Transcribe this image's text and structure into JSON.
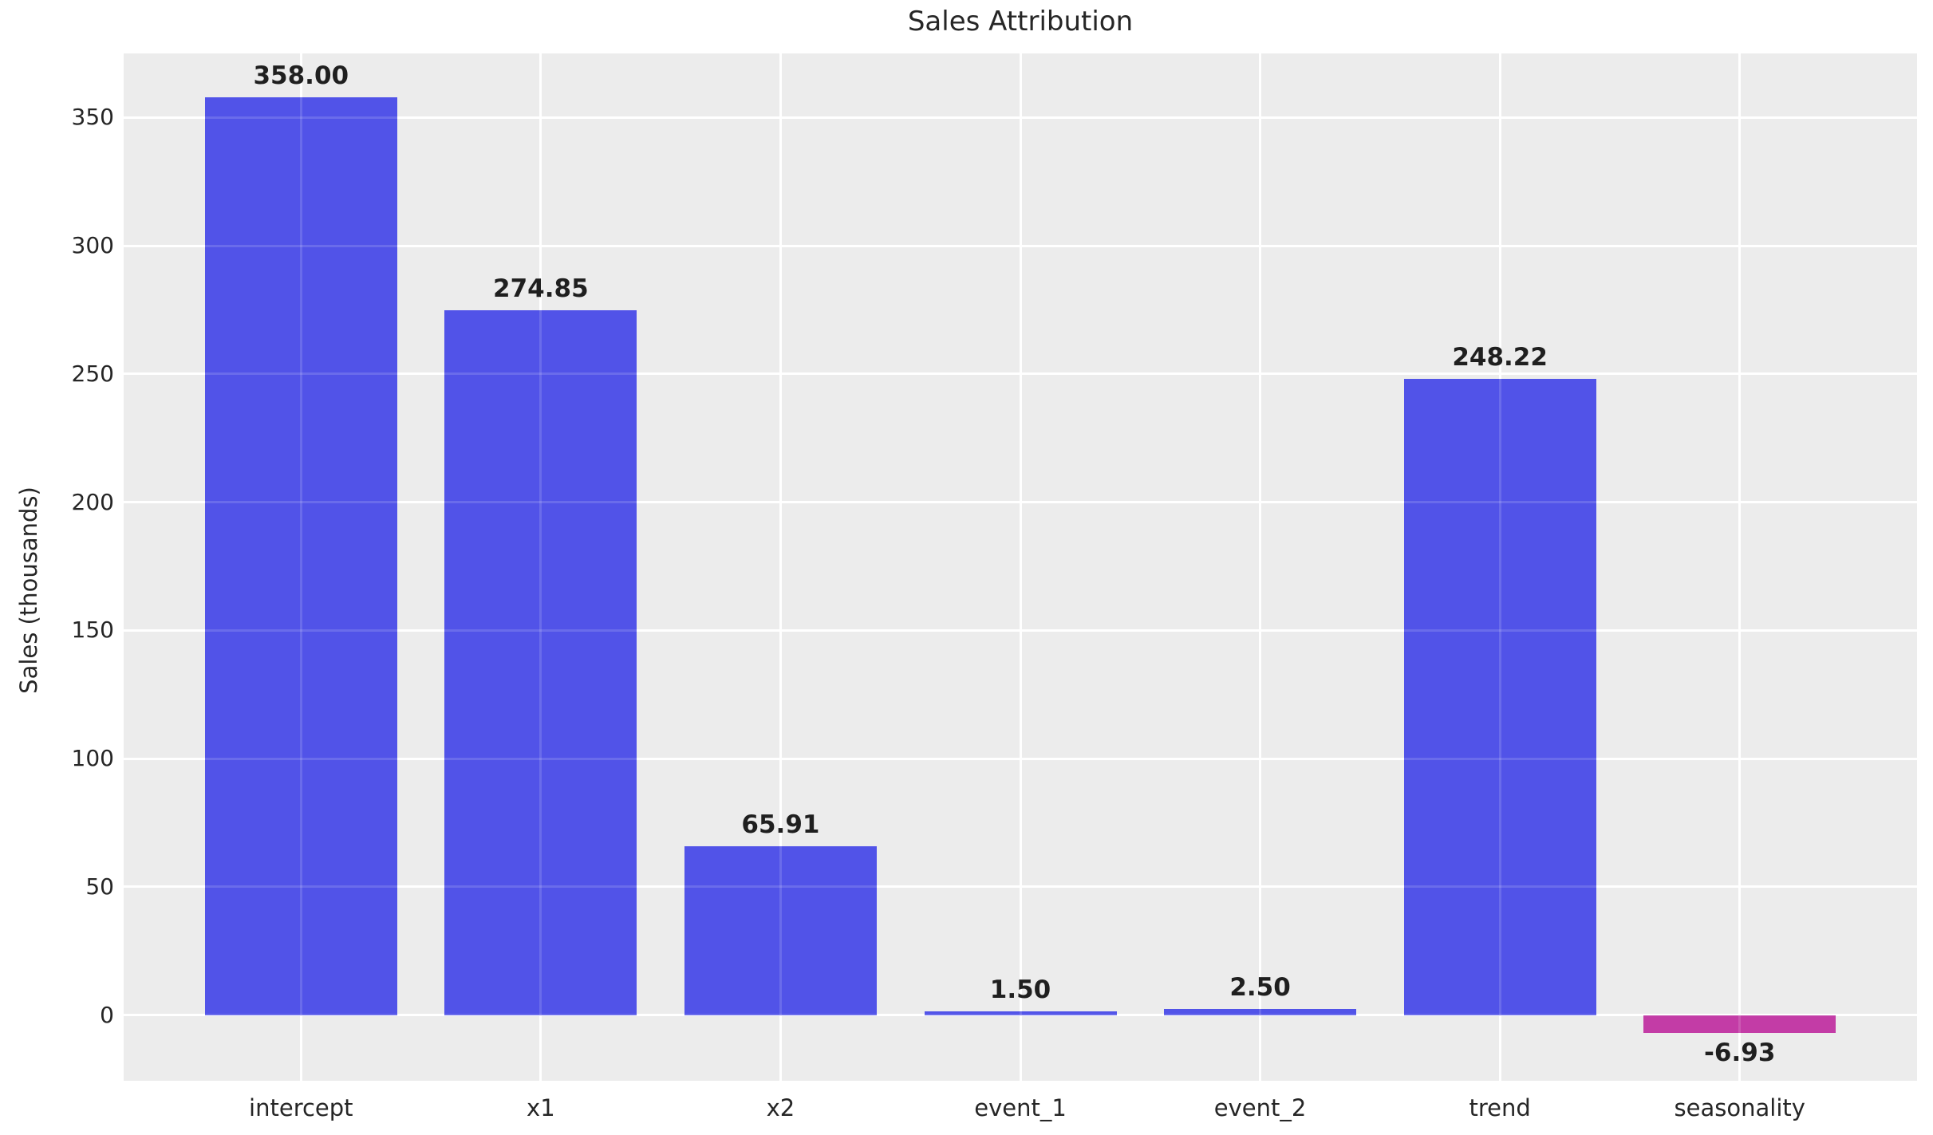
{
  "chart_data": {
    "type": "bar",
    "title": "Sales Attribution",
    "xlabel": "",
    "ylabel": "Sales (thousands)",
    "categories": [
      "intercept",
      "x1",
      "x2",
      "event_1",
      "event_2",
      "trend",
      "seasonality"
    ],
    "values": [
      358.0,
      274.85,
      65.91,
      1.5,
      2.5,
      248.22,
      -6.93
    ],
    "bar_labels": [
      "358.00",
      "274.85",
      "65.91",
      "1.50",
      "2.50",
      "248.22",
      "-6.93"
    ],
    "yticks": [
      0,
      50,
      100,
      150,
      200,
      250,
      300,
      350
    ],
    "ylim": [
      -25.6,
      375.0
    ],
    "grid": true,
    "legend": "none",
    "colors": {
      "positive_bar": "#5153E8",
      "negative_bar": "#C33CA6",
      "plot_background": "#ECECEC",
      "grid_line": "#FFFFFF",
      "tick_text": "#262626",
      "value_label_text": "#1F1F1F"
    }
  }
}
